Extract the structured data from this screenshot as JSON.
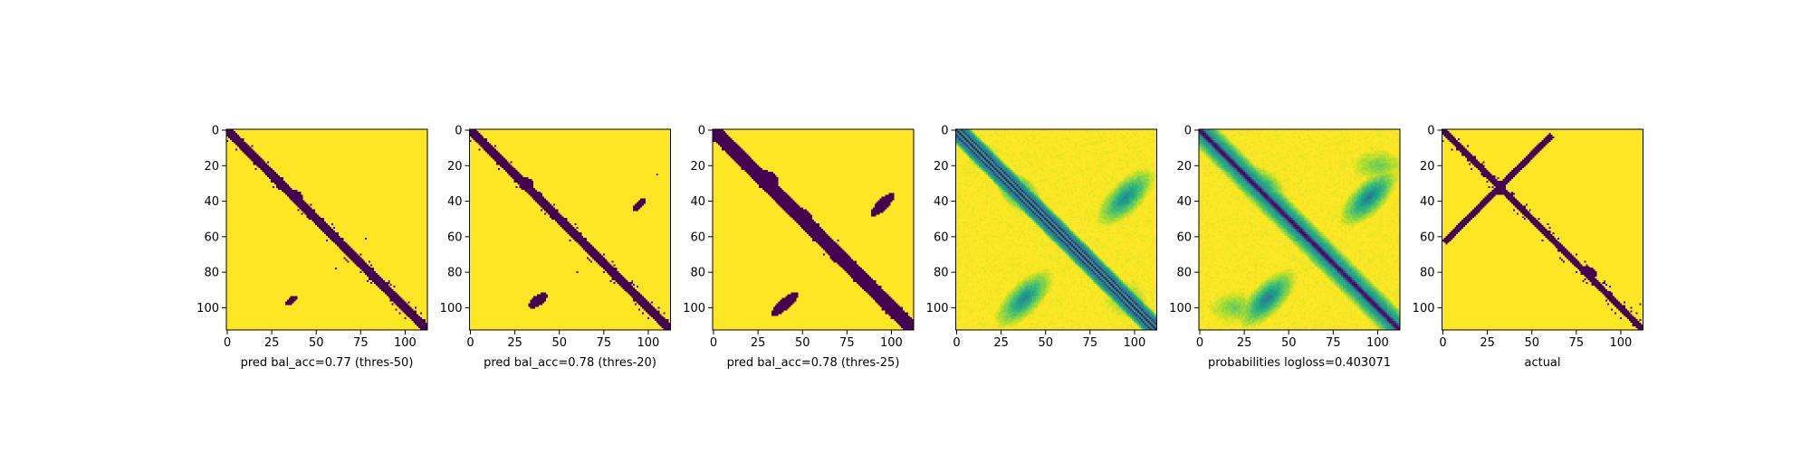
{
  "chart_data": [
    {
      "type": "heatmap",
      "colormap": "binary-viridis",
      "xlabel": "pred bal_acc=0.77 (thres-50)",
      "matrix_size": 113,
      "xlim": [
        0,
        112
      ],
      "ylim": [
        112,
        0
      ],
      "xticks": [
        0,
        25,
        50,
        75,
        100
      ],
      "yticks": [
        0,
        20,
        40,
        60,
        80,
        100
      ],
      "features": [
        {
          "kind": "diag",
          "from": 0,
          "to": 112,
          "width": 3
        },
        {
          "kind": "blob",
          "x": 39,
          "y": 37,
          "rx": 4,
          "ry": 3,
          "angle": 45
        },
        {
          "kind": "blob",
          "x": 36,
          "y": 96,
          "rx": 4,
          "ry": 2,
          "angle": -40
        },
        {
          "kind": "dot",
          "x": 78,
          "y": 61
        },
        {
          "kind": "dot",
          "x": 61,
          "y": 78
        }
      ]
    },
    {
      "type": "heatmap",
      "colormap": "binary-viridis",
      "xlabel": "pred bal_acc=0.78 (thres-20)",
      "matrix_size": 113,
      "xlim": [
        0,
        112
      ],
      "ylim": [
        112,
        0
      ],
      "xticks": [
        0,
        25,
        50,
        75,
        100
      ],
      "yticks": [
        0,
        20,
        40,
        60,
        80,
        100
      ],
      "features": [
        {
          "kind": "diag",
          "from": 0,
          "to": 112,
          "width": 3.5
        },
        {
          "kind": "blob",
          "x": 32,
          "y": 30,
          "rx": 4,
          "ry": 3,
          "angle": 30
        },
        {
          "kind": "blob",
          "x": 95,
          "y": 42,
          "rx": 5,
          "ry": 2,
          "angle": -45
        },
        {
          "kind": "blob",
          "x": 38,
          "y": 96,
          "rx": 6,
          "ry": 3,
          "angle": -35
        },
        {
          "kind": "dot",
          "x": 60,
          "y": 80
        },
        {
          "kind": "dot",
          "x": 105,
          "y": 25
        }
      ]
    },
    {
      "type": "heatmap",
      "colormap": "binary-viridis",
      "xlabel": "pred bal_acc=0.78 (thres-25)",
      "matrix_size": 113,
      "xlim": [
        0,
        112
      ],
      "ylim": [
        112,
        0
      ],
      "xticks": [
        0,
        25,
        50,
        75,
        100
      ],
      "yticks": [
        0,
        20,
        40,
        60,
        80,
        100
      ],
      "features": [
        {
          "kind": "diag",
          "from": 0,
          "to": 112,
          "width": 5
        },
        {
          "kind": "blob",
          "x": 30,
          "y": 28,
          "rx": 7,
          "ry": 5,
          "angle": 20
        },
        {
          "kind": "blob",
          "x": 50,
          "y": 48,
          "rx": 6,
          "ry": 4,
          "angle": 30
        },
        {
          "kind": "blob",
          "x": 95,
          "y": 42,
          "rx": 9,
          "ry": 3,
          "angle": -45
        },
        {
          "kind": "blob",
          "x": 40,
          "y": 98,
          "rx": 10,
          "ry": 3,
          "angle": -40
        },
        {
          "kind": "blob",
          "x": 80,
          "y": 80,
          "rx": 5,
          "ry": 4,
          "angle": 20
        },
        {
          "kind": "dot",
          "x": 62,
          "y": 70
        },
        {
          "kind": "dot",
          "x": 70,
          "y": 62
        }
      ]
    },
    {
      "type": "heatmap",
      "colormap": "viridis",
      "xlabel": "",
      "matrix_size": 113,
      "xlim": [
        0,
        112
      ],
      "ylim": [
        112,
        0
      ],
      "xticks": [
        0,
        25,
        50,
        75,
        100
      ],
      "yticks": [
        0,
        20,
        40,
        60,
        80,
        100
      ],
      "features": [
        {
          "kind": "band",
          "offset": -4,
          "width": 5,
          "value": 0.45
        },
        {
          "kind": "band",
          "offset": 4,
          "width": 5,
          "value": 0.45
        },
        {
          "kind": "band",
          "offset": 0,
          "width": 1.5,
          "value": 0.0
        },
        {
          "kind": "band",
          "offset": -3,
          "width": 1,
          "value": 0.1
        },
        {
          "kind": "band",
          "offset": 3,
          "width": 1,
          "value": 0.1
        },
        {
          "kind": "blob",
          "x": 35,
          "y": 35,
          "rx": 9,
          "ry": 6,
          "angle": 40,
          "value": 0.4
        },
        {
          "kind": "blob",
          "x": 95,
          "y": 38,
          "rx": 14,
          "ry": 6,
          "angle": -45,
          "value": 0.45
        },
        {
          "kind": "blob",
          "x": 38,
          "y": 95,
          "rx": 14,
          "ry": 6,
          "angle": -45,
          "value": 0.45
        },
        {
          "kind": "blob",
          "x": 95,
          "y": 95,
          "rx": 8,
          "ry": 7,
          "angle": 0,
          "value": 0.75
        },
        {
          "kind": "blob",
          "x": 15,
          "y": 15,
          "rx": 6,
          "ry": 5,
          "angle": 0,
          "value": 0.8
        }
      ]
    },
    {
      "type": "heatmap",
      "colormap": "viridis",
      "xlabel": "probabilities logloss=0.403071",
      "matrix_size": 113,
      "xlim": [
        0,
        112
      ],
      "ylim": [
        112,
        0
      ],
      "xticks": [
        0,
        25,
        50,
        75,
        100
      ],
      "yticks": [
        0,
        20,
        40,
        60,
        80,
        100
      ],
      "features": [
        {
          "kind": "band",
          "offset": 0,
          "width": 12,
          "value": 0.5
        },
        {
          "kind": "band",
          "offset": 0,
          "width": 4,
          "value": 0.02
        },
        {
          "kind": "blob",
          "x": 35,
          "y": 33,
          "rx": 10,
          "ry": 7,
          "angle": 40,
          "value": 0.45
        },
        {
          "kind": "blob",
          "x": 95,
          "y": 38,
          "rx": 14,
          "ry": 6,
          "angle": -45,
          "value": 0.4
        },
        {
          "kind": "blob",
          "x": 38,
          "y": 95,
          "rx": 14,
          "ry": 6,
          "angle": -45,
          "value": 0.4
        },
        {
          "kind": "blob",
          "x": 20,
          "y": 100,
          "rx": 10,
          "ry": 6,
          "angle": 0,
          "value": 0.75
        },
        {
          "kind": "blob",
          "x": 100,
          "y": 20,
          "rx": 10,
          "ry": 6,
          "angle": 0,
          "value": 0.75
        }
      ]
    },
    {
      "type": "heatmap",
      "colormap": "binary-viridis",
      "xlabel": "actual",
      "matrix_size": 113,
      "xlim": [
        0,
        112
      ],
      "ylim": [
        112,
        0
      ],
      "xticks": [
        0,
        25,
        50,
        75,
        100
      ],
      "yticks": [
        0,
        20,
        40,
        60,
        80,
        100
      ],
      "features": [
        {
          "kind": "diag",
          "from": 0,
          "to": 112,
          "width": 2.5
        },
        {
          "kind": "line",
          "x1": 2,
          "y1": 62,
          "x2": 60,
          "y2": 4,
          "width": 2
        },
        {
          "kind": "blob",
          "x": 32,
          "y": 33,
          "rx": 4,
          "ry": 3,
          "angle": -45
        },
        {
          "kind": "blob",
          "x": 82,
          "y": 80,
          "rx": 5,
          "ry": 3,
          "angle": 30
        },
        {
          "kind": "dot",
          "x": 88,
          "y": 88
        },
        {
          "kind": "dot",
          "x": 111,
          "y": 98
        }
      ]
    }
  ]
}
